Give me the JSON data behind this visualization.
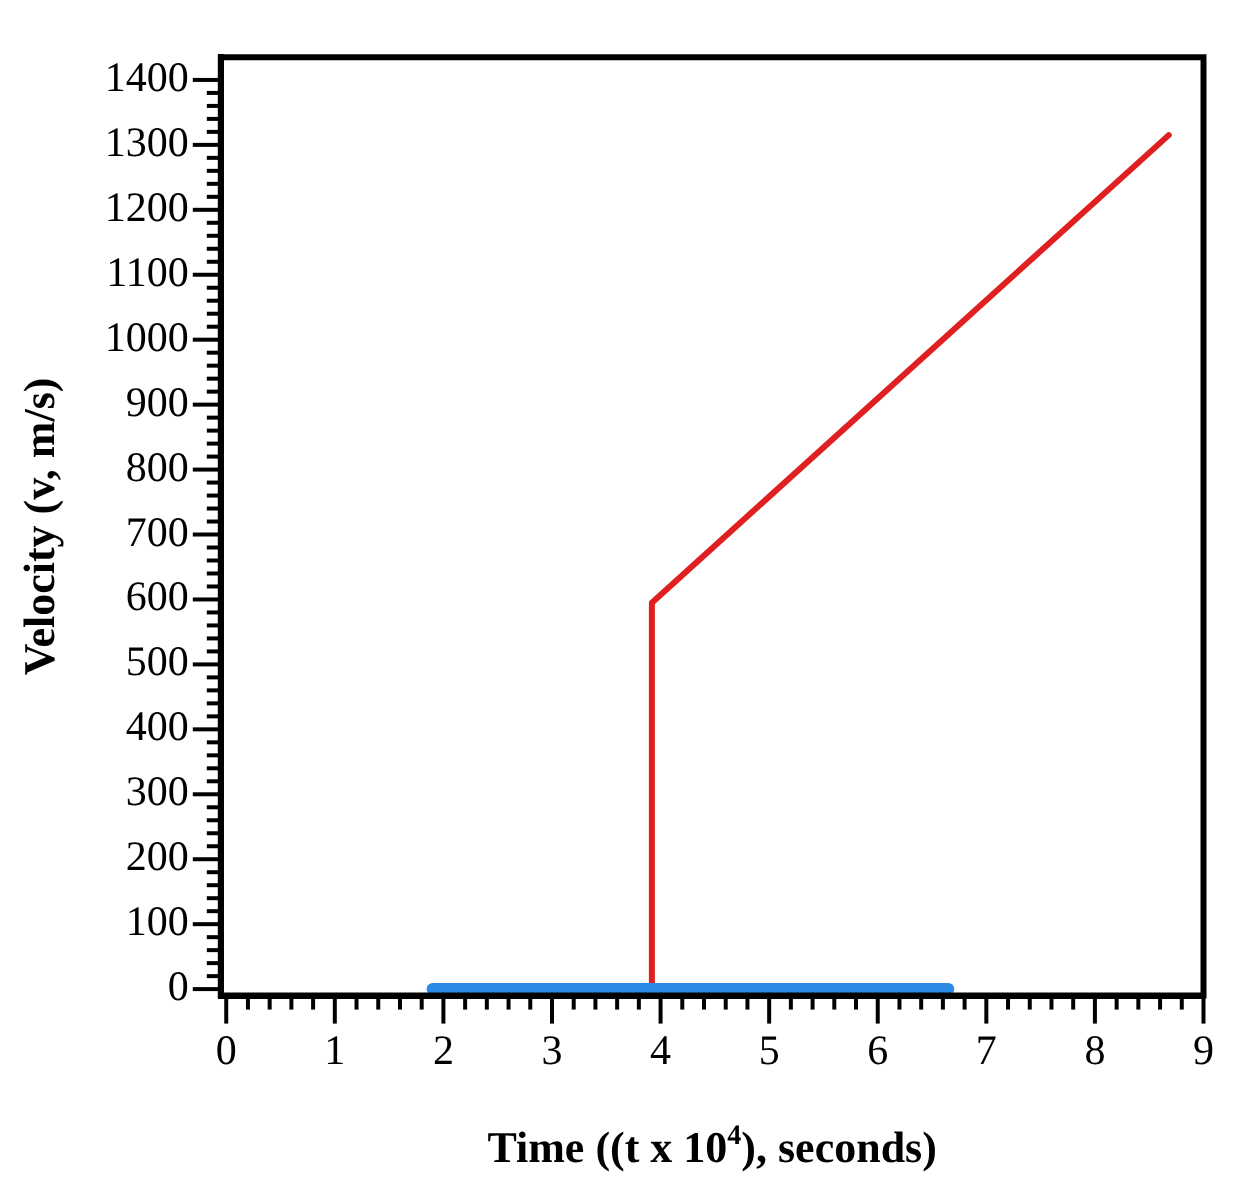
{
  "chart_data": {
    "type": "line",
    "xlabel": "Time ((t x 10$^{4}$), seconds)",
    "ylabel": "Velocity (v, m/s)",
    "marker": "none",
    "grid": false,
    "legend": false,
    "xlim": [
      -0.05,
      9
    ],
    "ylim": [
      -10,
      1435
    ],
    "xticks": [
      0,
      {
        "value": 0.2,
        "label": null
      },
      {
        "value": 0.4,
        "label": null
      },
      {
        "value": 0.6,
        "label": null
      },
      {
        "value": 0.8,
        "label": null
      },
      1,
      {
        "value": 1.2,
        "label": null
      },
      {
        "value": 1.4,
        "label": null
      },
      {
        "value": 1.6,
        "label": null
      },
      {
        "value": 1.8,
        "label": null
      },
      2,
      {
        "value": 2.2,
        "label": null
      },
      {
        "value": 2.4,
        "label": null
      },
      {
        "value": 2.6,
        "label": null
      },
      {
        "value": 2.8,
        "label": null
      },
      3,
      {
        "value": 3.2,
        "label": null
      },
      {
        "value": 3.4,
        "label": null
      },
      {
        "value": 3.6,
        "label": null
      },
      {
        "value": 3.8,
        "label": null
      },
      4,
      {
        "value": 4.2,
        "label": null
      },
      {
        "value": 4.4,
        "label": null
      },
      {
        "value": 4.6,
        "label": null
      },
      {
        "value": 4.8,
        "label": null
      },
      5,
      {
        "value": 5.2,
        "label": null
      },
      {
        "value": 5.4,
        "label": null
      },
      {
        "value": 5.6,
        "label": null
      },
      {
        "value": 5.8,
        "label": null
      },
      6,
      {
        "value": 6.2,
        "label": null
      },
      {
        "value": 6.4,
        "label": null
      },
      {
        "value": 6.6,
        "label": null
      },
      {
        "value": 6.8,
        "label": null
      },
      7,
      {
        "value": 7.2,
        "label": null
      },
      {
        "value": 7.4,
        "label": null
      },
      {
        "value": 7.6,
        "label": null
      },
      {
        "value": 7.8,
        "label": null
      },
      8,
      {
        "value": 8.2,
        "label": null
      },
      {
        "value": 8.4,
        "label": null
      },
      {
        "value": 8.6,
        "label": null
      },
      {
        "value": 8.8,
        "label": null
      },
      9
    ],
    "yticks": [
      0,
      {
        "value": 20,
        "label": null
      },
      {
        "value": 40,
        "label": null
      },
      {
        "value": 60,
        "label": null
      },
      {
        "value": 80,
        "label": null
      },
      100,
      {
        "value": 120,
        "label": null
      },
      {
        "value": 140,
        "label": null
      },
      {
        "value": 160,
        "label": null
      },
      {
        "value": 180,
        "label": null
      },
      200,
      {
        "value": 220,
        "label": null
      },
      {
        "value": 240,
        "label": null
      },
      {
        "value": 260,
        "label": null
      },
      {
        "value": 280,
        "label": null
      },
      300,
      {
        "value": 320,
        "label": null
      },
      {
        "value": 340,
        "label": null
      },
      {
        "value": 360,
        "label": null
      },
      {
        "value": 380,
        "label": null
      },
      400,
      {
        "value": 420,
        "label": null
      },
      {
        "value": 440,
        "label": null
      },
      {
        "value": 460,
        "label": null
      },
      {
        "value": 480,
        "label": null
      },
      500,
      {
        "value": 520,
        "label": null
      },
      {
        "value": 540,
        "label": null
      },
      {
        "value": 560,
        "label": null
      },
      {
        "value": 580,
        "label": null
      },
      600,
      {
        "value": 620,
        "label": null
      },
      {
        "value": 640,
        "label": null
      },
      {
        "value": 660,
        "label": null
      },
      {
        "value": 680,
        "label": null
      },
      700,
      {
        "value": 720,
        "label": null
      },
      {
        "value": 740,
        "label": null
      },
      {
        "value": 760,
        "label": null
      },
      {
        "value": 780,
        "label": null
      },
      800,
      {
        "value": 820,
        "label": null
      },
      {
        "value": 840,
        "label": null
      },
      {
        "value": 860,
        "label": null
      },
      {
        "value": 880,
        "label": null
      },
      900,
      {
        "value": 920,
        "label": null
      },
      {
        "value": 940,
        "label": null
      },
      {
        "value": 960,
        "label": null
      },
      {
        "value": 980,
        "label": null
      },
      1000,
      {
        "value": 1020,
        "label": null
      },
      {
        "value": 1040,
        "label": null
      },
      {
        "value": 1060,
        "label": null
      },
      {
        "value": 1080,
        "label": null
      },
      1100,
      {
        "value": 1120,
        "label": null
      },
      {
        "value": 1140,
        "label": null
      },
      {
        "value": 1160,
        "label": null
      },
      {
        "value": 1180,
        "label": null
      },
      1200,
      {
        "value": 1220,
        "label": null
      },
      {
        "value": 1240,
        "label": null
      },
      {
        "value": 1260,
        "label": null
      },
      {
        "value": 1280,
        "label": null
      },
      1300,
      {
        "value": 1320,
        "label": null
      },
      {
        "value": 1340,
        "label": null
      },
      {
        "value": 1360,
        "label": null
      },
      {
        "value": 1380,
        "label": null
      },
      1400
    ],
    "series": [
      {
        "color": "#2a8be6",
        "x": [
          1.9,
          6.65
        ],
        "values": [
          0,
          0
        ]
      },
      {
        "color": "#e02020",
        "x": [
          3.92,
          3.92,
          8.68
        ],
        "values": [
          0,
          595,
          1315
        ]
      }
    ]
  }
}
